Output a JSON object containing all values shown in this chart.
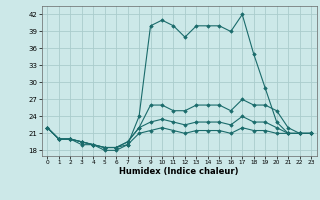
{
  "xlabel": "Humidex (Indice chaleur)",
  "ylabel": "",
  "xlim": [
    -0.5,
    23.5
  ],
  "ylim": [
    17,
    43.5
  ],
  "yticks": [
    18,
    21,
    24,
    27,
    30,
    33,
    36,
    39,
    42
  ],
  "xticks": [
    0,
    1,
    2,
    3,
    4,
    5,
    6,
    7,
    8,
    9,
    10,
    11,
    12,
    13,
    14,
    15,
    16,
    17,
    18,
    19,
    20,
    21,
    22,
    23
  ],
  "background_color": "#cce8e8",
  "grid_color": "#aacccc",
  "line_color": "#1a6b6b",
  "series": [
    [
      22,
      20,
      20,
      19,
      19,
      18,
      18,
      19,
      24,
      40,
      41,
      40,
      38,
      40,
      40,
      40,
      39,
      42,
      35,
      29,
      23,
      21,
      21,
      21
    ],
    [
      22,
      20,
      20,
      19.5,
      19,
      18.5,
      18.5,
      19.5,
      22,
      26,
      26,
      25,
      25,
      26,
      26,
      26,
      25,
      27,
      26,
      26,
      25,
      22,
      21,
      21
    ],
    [
      22,
      20,
      20,
      19.5,
      19,
      18.5,
      18.5,
      19.5,
      22,
      23,
      23.5,
      23,
      22.5,
      23,
      23,
      23,
      22.5,
      24,
      23,
      23,
      22,
      21,
      21,
      21
    ],
    [
      22,
      20,
      20,
      19.5,
      19,
      18.5,
      18.5,
      19,
      21,
      21.5,
      22,
      21.5,
      21,
      21.5,
      21.5,
      21.5,
      21,
      22,
      21.5,
      21.5,
      21,
      21,
      21,
      21
    ]
  ]
}
